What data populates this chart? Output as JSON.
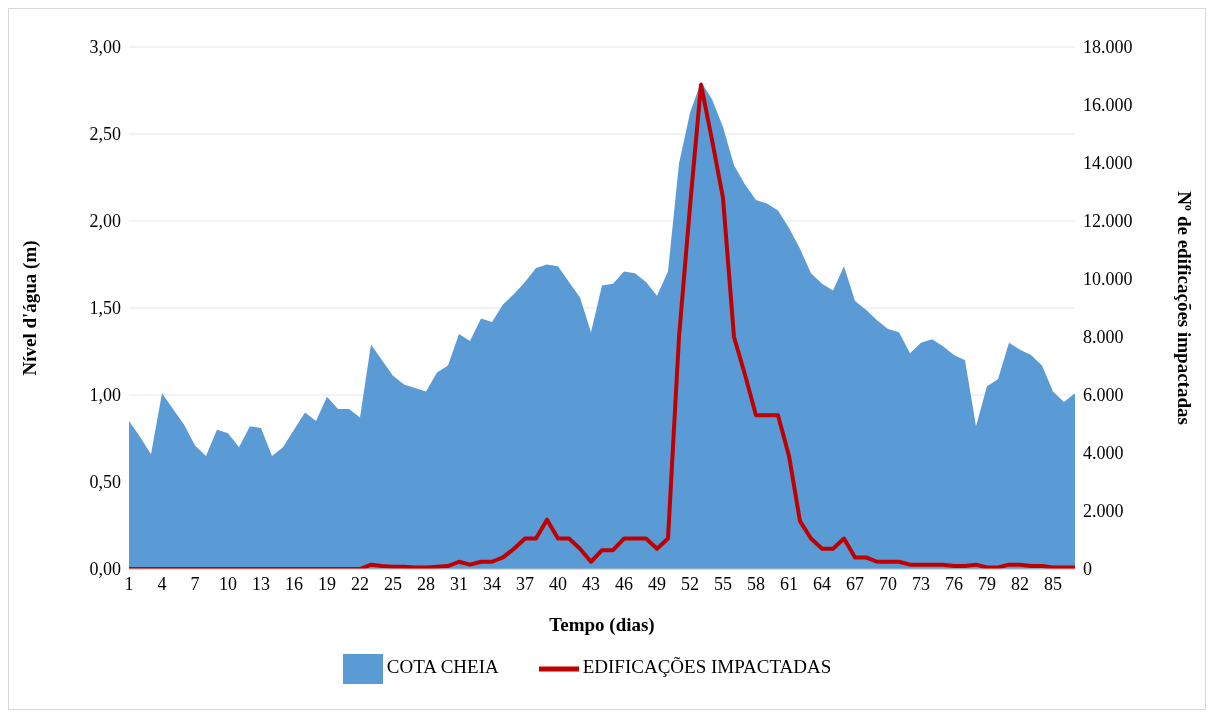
{
  "chart_data": {
    "type": "area",
    "xlabel": "Tempo (dias)",
    "ylabel": "Nível d'água (m)",
    "y2label": "Nº de edificações impactadas",
    "categories": [
      "1",
      null,
      null,
      "4",
      null,
      null,
      "7",
      null,
      null,
      "10",
      null,
      null,
      "13",
      null,
      null,
      "16",
      null,
      null,
      "19",
      null,
      null,
      "22",
      null,
      null,
      "25",
      null,
      null,
      "28",
      null,
      null,
      "31",
      null,
      null,
      "34",
      null,
      null,
      "37",
      null,
      null,
      "40",
      null,
      null,
      "43",
      null,
      null,
      "46",
      null,
      null,
      "49",
      null,
      null,
      "52",
      null,
      null,
      "55",
      null,
      null,
      "58",
      null,
      null,
      "61",
      null,
      null,
      "64",
      null,
      null,
      "67",
      null,
      null,
      "70",
      null,
      null,
      "73",
      null,
      null,
      "76",
      null,
      null,
      "79",
      null,
      null,
      "82",
      null,
      null,
      "85",
      null,
      null
    ],
    "series": [
      {
        "name": "COTA CHEIA",
        "type": "area",
        "color": "#5b9bd5",
        "values": [
          0.85,
          0.76,
          0.66,
          1.01,
          0.92,
          0.83,
          0.71,
          0.65,
          0.8,
          0.78,
          0.7,
          0.82,
          0.81,
          0.65,
          0.7,
          0.8,
          0.9,
          0.85,
          0.99,
          0.92,
          0.92,
          0.87,
          1.29,
          1.2,
          1.11,
          1.06,
          1.04,
          1.02,
          1.13,
          1.17,
          1.35,
          1.31,
          1.44,
          1.42,
          1.52,
          1.58,
          1.65,
          1.73,
          1.75,
          1.74,
          1.65,
          1.56,
          1.36,
          1.63,
          1.64,
          1.71,
          1.7,
          1.65,
          1.57,
          1.71,
          2.33,
          2.62,
          2.8,
          2.7,
          2.54,
          2.32,
          2.21,
          2.12,
          2.1,
          2.06,
          1.96,
          1.84,
          1.7,
          1.64,
          1.6,
          1.74,
          1.54,
          1.49,
          1.43,
          1.38,
          1.36,
          1.24,
          1.3,
          1.32,
          1.28,
          1.23,
          1.2,
          0.82,
          1.05,
          1.09,
          1.3,
          1.26,
          1.23,
          1.17,
          1.02,
          0.96,
          1.01
        ]
      },
      {
        "name": "EDIFICAÇÕES IMPACTADAS",
        "type": "line",
        "axis": "y2",
        "color": "#c00000",
        "values": [
          0,
          0,
          0,
          0,
          0,
          0,
          0,
          0,
          0,
          0,
          0,
          0,
          0,
          0,
          0,
          0,
          0,
          0,
          0,
          0,
          0,
          0,
          150,
          100,
          80,
          80,
          50,
          50,
          80,
          100,
          250,
          150,
          250,
          250,
          400,
          700,
          1050,
          1050,
          1700,
          1050,
          1050,
          700,
          250,
          650,
          650,
          1050,
          1050,
          1050,
          700,
          1050,
          8000,
          12500,
          16700,
          14800,
          12800,
          8000,
          6700,
          5300,
          5300,
          5300,
          3900,
          1650,
          1050,
          700,
          700,
          1050,
          400,
          400,
          250,
          250,
          250,
          150,
          150,
          150,
          150,
          100,
          100,
          150,
          50,
          50,
          150,
          150,
          100,
          100,
          50,
          50,
          50
        ]
      }
    ],
    "ylim": [
      0,
      3
    ],
    "yticks": [
      {
        "value": 0,
        "label": "0,00"
      },
      {
        "value": 0.5,
        "label": "0,50"
      },
      {
        "value": 1,
        "label": "1,00"
      },
      {
        "value": 1.5,
        "label": "1,50"
      },
      {
        "value": 2,
        "label": "2,00"
      },
      {
        "value": 2.5,
        "label": "2,50"
      },
      {
        "value": 3,
        "label": "3,00"
      }
    ],
    "y2lim": [
      0,
      18000
    ],
    "y2ticks": [
      0,
      {
        "value": 2000,
        "label": "2.000"
      },
      {
        "value": 4000,
        "label": "4.000"
      },
      {
        "value": 6000,
        "label": "6.000"
      },
      {
        "value": 8000,
        "label": "8.000"
      },
      {
        "value": 10000,
        "label": "10.000"
      },
      {
        "value": 12000,
        "label": "12.000"
      },
      {
        "value": 14000,
        "label": "14.000"
      },
      {
        "value": 16000,
        "label": "16.000"
      },
      {
        "value": 18000,
        "label": "18.000"
      }
    ],
    "grid": "y",
    "legend": "bottom",
    "marker": "none",
    "line_style": "solid"
  }
}
